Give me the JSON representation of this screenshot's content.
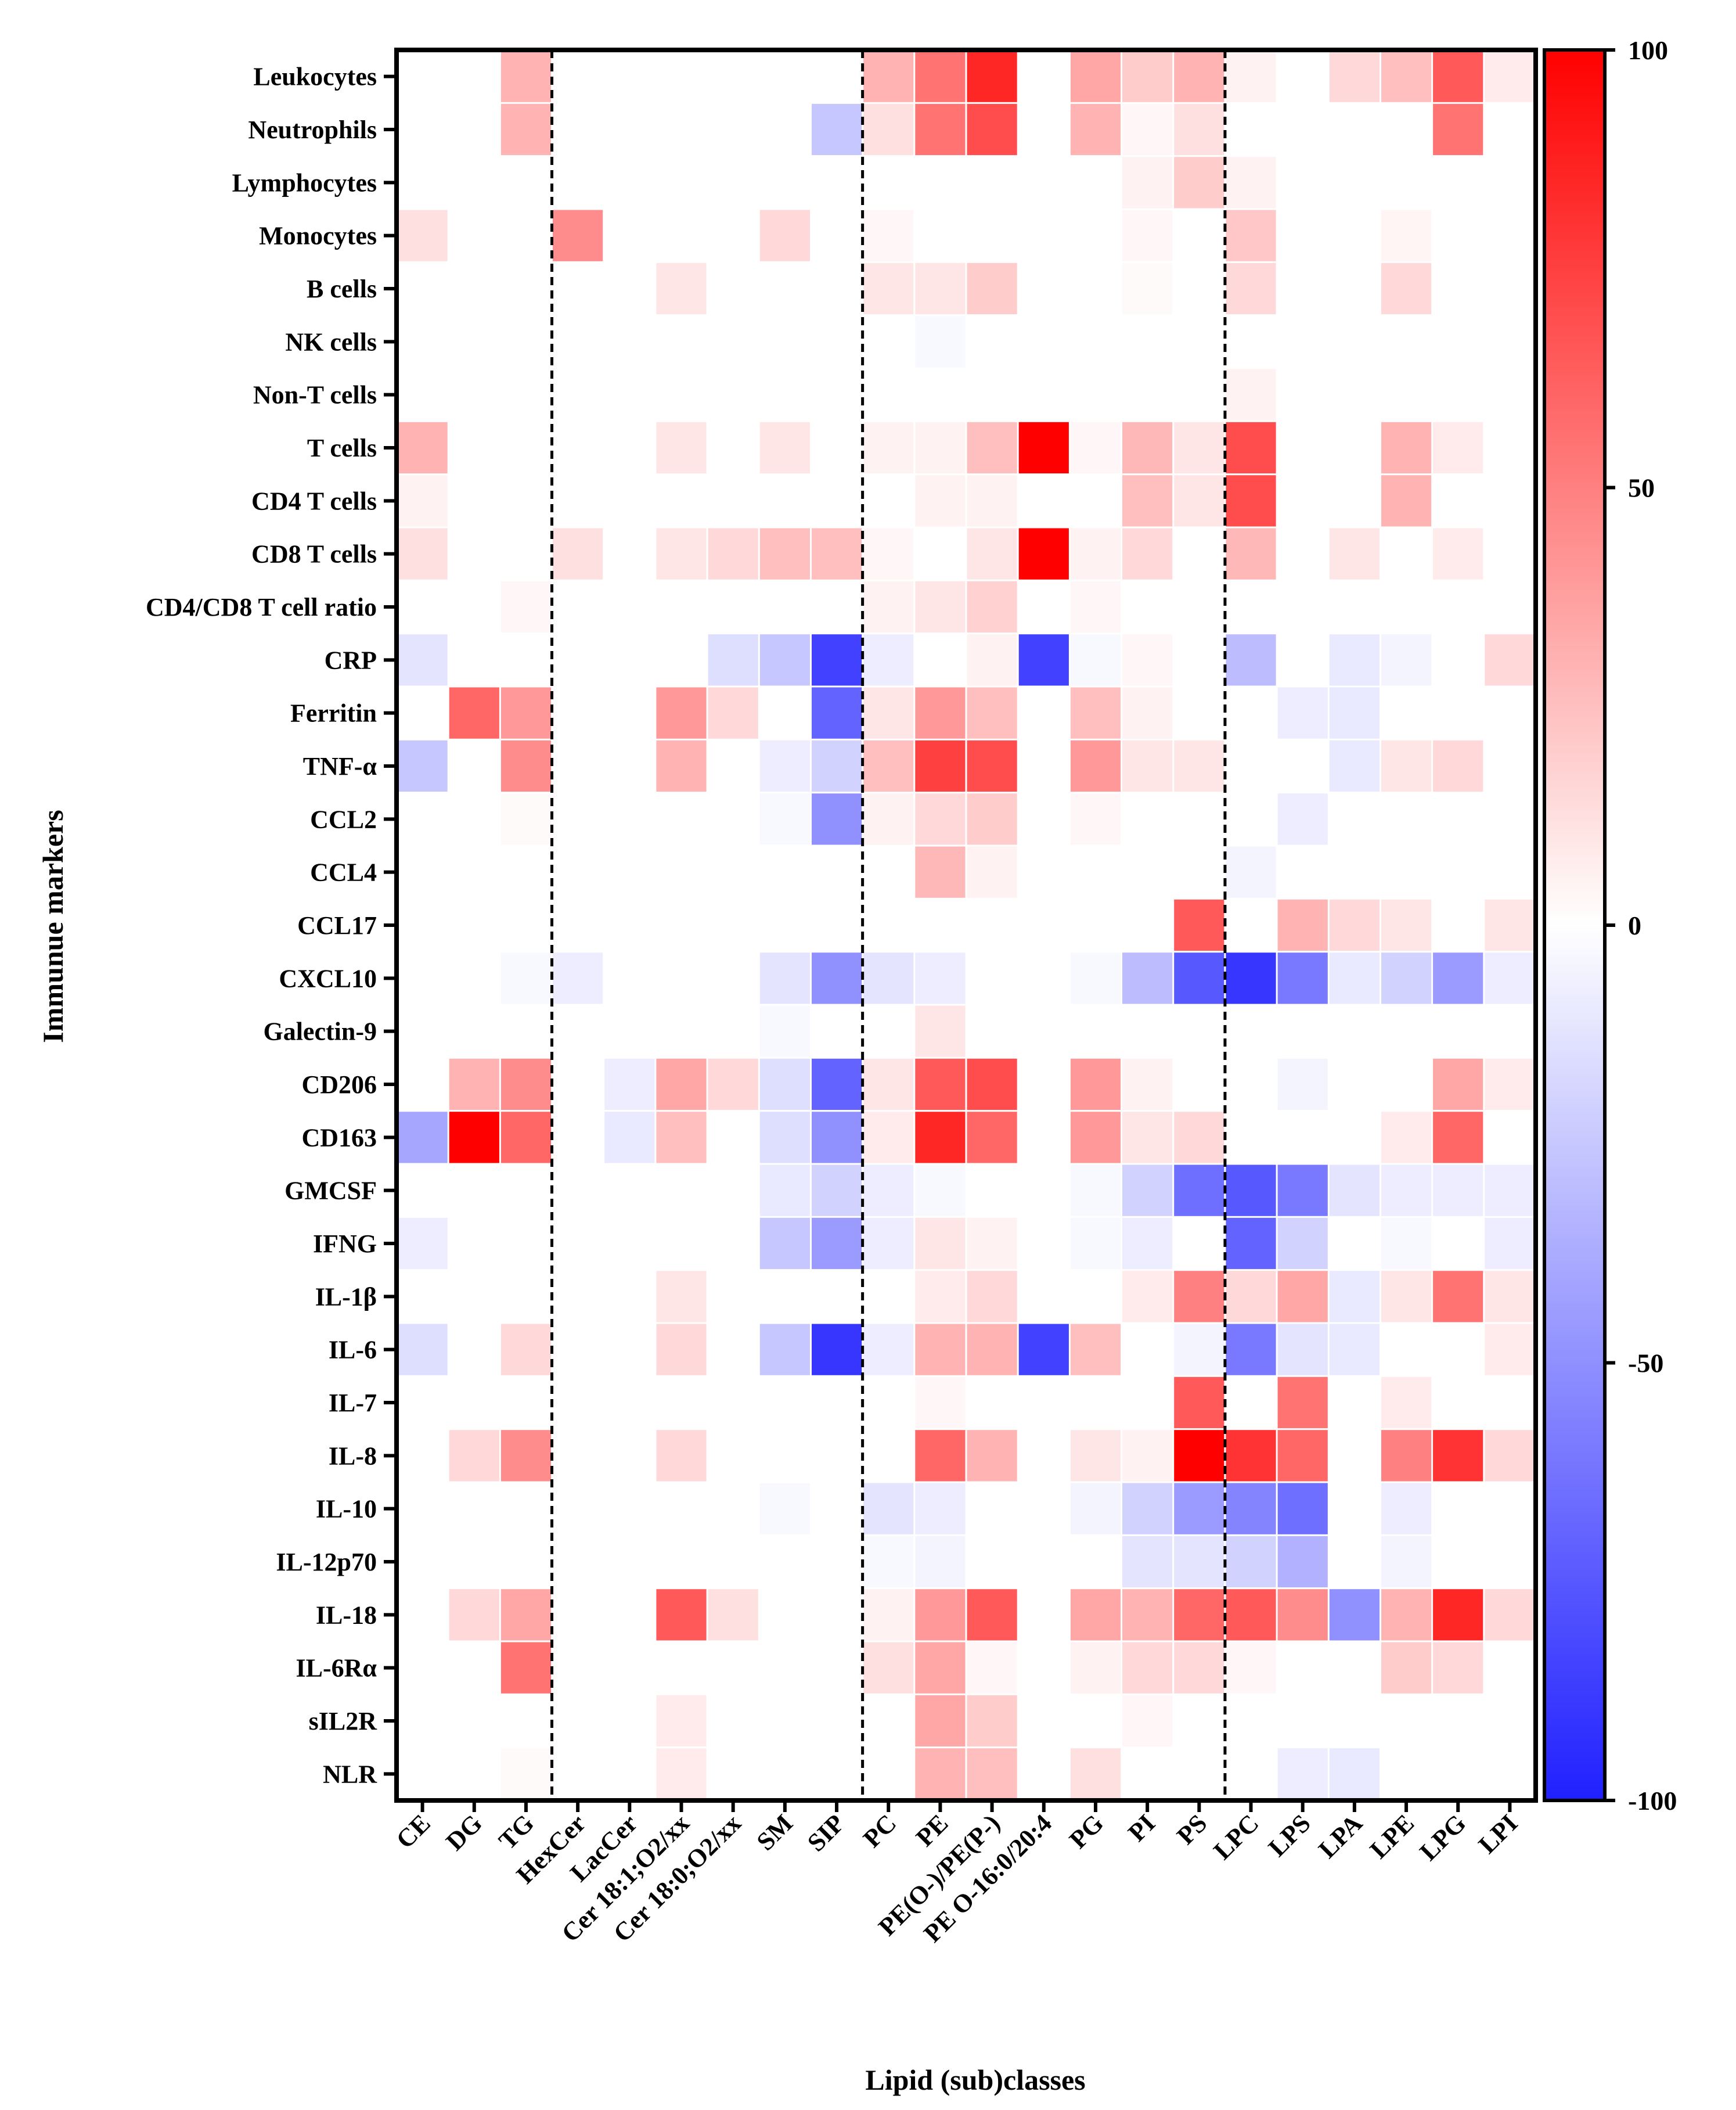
{
  "chart_data": {
    "type": "heatmap",
    "title": "",
    "xlabel": "Lipid (sub)classes",
    "ylabel": "Immunue markers",
    "rows": [
      "Leukocytes",
      "Neutrophils",
      "Lymphocytes",
      "Monocytes",
      "B cells",
      "NK cells",
      "Non-T cells",
      "T cells",
      "CD4 T cells",
      "CD8 T cells",
      "CD4/CD8 T cell ratio",
      "CRP",
      "Ferritin",
      "TNF-α",
      "CCL2",
      "CCL4",
      "CCL17",
      "CXCL10",
      "Galectin-9",
      "CD206",
      "CD163",
      "GMCSF",
      "IFNG",
      "IL-1β",
      "IL-6",
      "IL-7",
      "IL-8",
      "IL-10",
      "IL-12p70",
      "IL-18",
      "IL-6Rα",
      "sIL2R",
      "NLR"
    ],
    "columns": [
      "CE",
      "DG",
      "TG",
      "HexCer",
      "LacCer",
      "Cer 18:1;O2/xx",
      "Cer 18:0;O2/xx",
      "SM",
      "SIP",
      "PC",
      "PE",
      "PE(O-)/PE(P-)",
      "PE O-16:0/20:4",
      "PG",
      "PI",
      "PS",
      "LPC",
      "LPS",
      "LPA",
      "LPE",
      "LPG",
      "LPI"
    ],
    "group_dividers_after_column": [
      "TG",
      "SIP",
      "PS"
    ],
    "colorbar": {
      "min": -100,
      "max": 100,
      "ticks": [
        "100",
        "50",
        "0",
        "-50",
        "-100"
      ],
      "low_color": "#2020ff",
      "mid_color": "#ffffff",
      "high_color": "#ff0000"
    },
    "values": [
      [
        0,
        0,
        30,
        0,
        0,
        0,
        0,
        0,
        0,
        30,
        55,
        85,
        0,
        35,
        20,
        30,
        5,
        0,
        15,
        25,
        65,
        8
      ],
      [
        0,
        0,
        30,
        0,
        0,
        0,
        0,
        0,
        -25,
        12,
        55,
        70,
        0,
        30,
        3,
        12,
        0,
        0,
        0,
        0,
        55,
        0
      ],
      [
        0,
        0,
        0,
        0,
        0,
        0,
        0,
        0,
        0,
        0,
        0,
        0,
        0,
        0,
        5,
        20,
        5,
        0,
        0,
        0,
        0,
        0
      ],
      [
        12,
        0,
        0,
        45,
        0,
        0,
        0,
        15,
        0,
        3,
        0,
        0,
        0,
        0,
        3,
        0,
        22,
        0,
        0,
        4,
        0,
        0
      ],
      [
        0,
        0,
        0,
        0,
        0,
        10,
        0,
        0,
        0,
        10,
        10,
        20,
        0,
        0,
        2,
        0,
        15,
        0,
        0,
        15,
        0,
        0
      ],
      [
        0,
        0,
        0,
        0,
        0,
        0,
        0,
        0,
        0,
        0,
        -3,
        0,
        0,
        0,
        0,
        0,
        0,
        0,
        0,
        0,
        0,
        0
      ],
      [
        0,
        0,
        0,
        0,
        0,
        0,
        0,
        0,
        0,
        0,
        0,
        0,
        0,
        0,
        0,
        0,
        5,
        0,
        0,
        0,
        0,
        0
      ],
      [
        30,
        0,
        0,
        0,
        0,
        10,
        0,
        10,
        0,
        5,
        5,
        25,
        100,
        3,
        28,
        10,
        70,
        0,
        0,
        30,
        8,
        0
      ],
      [
        5,
        0,
        0,
        0,
        0,
        0,
        0,
        0,
        0,
        0,
        5,
        5,
        0,
        0,
        25,
        10,
        70,
        0,
        0,
        30,
        0,
        0
      ],
      [
        12,
        0,
        0,
        12,
        0,
        10,
        15,
        25,
        25,
        3,
        0,
        10,
        100,
        5,
        15,
        0,
        28,
        0,
        10,
        0,
        8,
        0
      ],
      [
        0,
        0,
        3,
        0,
        0,
        0,
        0,
        0,
        0,
        5,
        10,
        18,
        0,
        3,
        0,
        0,
        0,
        0,
        0,
        0,
        0,
        0
      ],
      [
        -12,
        0,
        0,
        0,
        0,
        0,
        -15,
        -25,
        -85,
        -8,
        0,
        5,
        -85,
        -3,
        3,
        0,
        -30,
        0,
        -10,
        -5,
        0,
        15
      ],
      [
        0,
        60,
        40,
        0,
        0,
        40,
        15,
        0,
        -70,
        10,
        40,
        25,
        0,
        25,
        5,
        0,
        0,
        -8,
        -10,
        0,
        0,
        0
      ],
      [
        -25,
        0,
        45,
        0,
        0,
        30,
        0,
        -8,
        -20,
        25,
        75,
        70,
        0,
        40,
        10,
        10,
        0,
        0,
        -10,
        10,
        15,
        0
      ],
      [
        0,
        0,
        2,
        0,
        0,
        0,
        0,
        -3,
        -50,
        5,
        15,
        20,
        0,
        3,
        0,
        0,
        0,
        -8,
        0,
        0,
        0,
        0
      ],
      [
        0,
        0,
        0,
        0,
        0,
        0,
        0,
        0,
        0,
        0,
        28,
        5,
        0,
        0,
        0,
        0,
        -5,
        0,
        0,
        0,
        0,
        0
      ],
      [
        0,
        0,
        0,
        0,
        0,
        0,
        0,
        0,
        0,
        0,
        0,
        0,
        0,
        0,
        0,
        65,
        0,
        30,
        15,
        10,
        0,
        10
      ],
      [
        0,
        0,
        -3,
        -8,
        0,
        0,
        0,
        -12,
        -50,
        -12,
        -8,
        0,
        0,
        -3,
        -30,
        -75,
        -90,
        -60,
        -10,
        -20,
        -45,
        -8
      ],
      [
        0,
        0,
        0,
        0,
        0,
        0,
        0,
        -3,
        0,
        0,
        10,
        0,
        0,
        0,
        0,
        0,
        0,
        0,
        0,
        0,
        0,
        0
      ],
      [
        0,
        30,
        45,
        0,
        -8,
        35,
        15,
        -15,
        -70,
        10,
        65,
        70,
        0,
        40,
        5,
        0,
        0,
        -5,
        0,
        0,
        35,
        8
      ],
      [
        -40,
        100,
        60,
        0,
        -10,
        25,
        0,
        -15,
        -50,
        8,
        85,
        60,
        0,
        40,
        10,
        15,
        0,
        0,
        0,
        8,
        60,
        0
      ],
      [
        0,
        0,
        0,
        0,
        0,
        0,
        0,
        -10,
        -20,
        -8,
        -3,
        0,
        0,
        -3,
        -20,
        -65,
        -75,
        -60,
        -12,
        -8,
        -8,
        -8
      ],
      [
        -8,
        0,
        0,
        0,
        0,
        0,
        0,
        -25,
        -45,
        -8,
        10,
        5,
        0,
        -3,
        -8,
        0,
        -70,
        -20,
        0,
        -3,
        0,
        -8
      ],
      [
        0,
        0,
        0,
        0,
        0,
        10,
        0,
        0,
        0,
        0,
        8,
        15,
        0,
        0,
        8,
        50,
        15,
        35,
        -10,
        10,
        55,
        10
      ],
      [
        -15,
        0,
        15,
        0,
        0,
        15,
        0,
        -25,
        -90,
        -8,
        30,
        30,
        -85,
        25,
        0,
        -5,
        -60,
        -12,
        -10,
        0,
        0,
        8
      ],
      [
        0,
        0,
        0,
        0,
        0,
        0,
        0,
        0,
        0,
        0,
        3,
        0,
        0,
        0,
        0,
        65,
        0,
        55,
        0,
        8,
        0,
        0
      ],
      [
        0,
        15,
        45,
        0,
        0,
        15,
        0,
        0,
        0,
        0,
        60,
        30,
        0,
        10,
        5,
        100,
        80,
        60,
        0,
        50,
        80,
        15
      ],
      [
        0,
        0,
        0,
        0,
        0,
        0,
        0,
        -3,
        0,
        -12,
        -8,
        0,
        0,
        -5,
        -20,
        -45,
        -55,
        -65,
        0,
        -8,
        0,
        0
      ],
      [
        0,
        0,
        0,
        0,
        0,
        0,
        0,
        0,
        0,
        -3,
        -5,
        0,
        0,
        0,
        -12,
        -12,
        -20,
        -35,
        0,
        -5,
        0,
        0
      ],
      [
        0,
        15,
        35,
        0,
        0,
        65,
        12,
        0,
        0,
        5,
        40,
        65,
        0,
        35,
        30,
        60,
        65,
        45,
        -50,
        30,
        85,
        15
      ],
      [
        0,
        0,
        55,
        0,
        0,
        0,
        0,
        0,
        0,
        12,
        35,
        3,
        0,
        5,
        15,
        15,
        3,
        0,
        0,
        20,
        15,
        0
      ],
      [
        0,
        0,
        0,
        0,
        0,
        8,
        0,
        0,
        0,
        0,
        35,
        20,
        0,
        0,
        3,
        0,
        0,
        0,
        0,
        0,
        0,
        0
      ],
      [
        0,
        0,
        2,
        0,
        0,
        8,
        0,
        0,
        0,
        0,
        30,
        25,
        0,
        12,
        0,
        0,
        0,
        -8,
        -10,
        0,
        0,
        0
      ]
    ]
  }
}
